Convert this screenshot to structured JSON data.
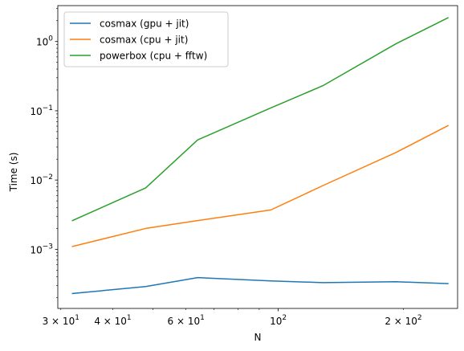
{
  "chart_data": {
    "type": "line",
    "xlabel": "N",
    "ylabel": "Time (s)",
    "xscale": "log",
    "yscale": "log",
    "xlim": [
      29.5,
      270
    ],
    "ylim": [
      0.00014,
      3.3
    ],
    "grid": false,
    "legend_position": "top-left",
    "x": [
      32,
      48,
      64,
      96,
      128,
      192,
      256
    ],
    "series": [
      {
        "name": "cosmax (gpu + jit)",
        "color": "#1f77b4",
        "values": [
          0.00023,
          0.00029,
          0.00039,
          0.00035,
          0.00033,
          0.00034,
          0.00032
        ]
      },
      {
        "name": "cosmax (cpu + jit)",
        "color": "#ff7f0e",
        "values": [
          0.0011,
          0.002,
          0.0026,
          0.0037,
          0.0083,
          0.025,
          0.061
        ]
      },
      {
        "name": "powerbox (cpu + fftw)",
        "color": "#2ca02c",
        "values": [
          0.0026,
          0.0077,
          0.038,
          0.11,
          0.23,
          0.93,
          2.2
        ]
      }
    ],
    "x_major_ticks": [
      {
        "value": 100,
        "base": "10",
        "exp": "2"
      }
    ],
    "x_minor_ticks": [
      {
        "value": 30,
        "base": "3 × 10",
        "exp": "1"
      },
      {
        "value": 40,
        "base": "4 × 10",
        "exp": "1"
      },
      {
        "value": 60,
        "base": "6 × 10",
        "exp": "1"
      },
      {
        "value": 200,
        "base": "2 × 10",
        "exp": "2"
      }
    ],
    "x_unlabeled_minor": [
      50,
      70,
      80,
      90
    ],
    "y_major_ticks": [
      {
        "value": 0.001,
        "base": "10",
        "exp": "−3"
      },
      {
        "value": 0.01,
        "base": "10",
        "exp": "−2"
      },
      {
        "value": 0.1,
        "base": "10",
        "exp": "−1"
      },
      {
        "value": 1,
        "base": "10",
        "exp": "0"
      }
    ]
  }
}
